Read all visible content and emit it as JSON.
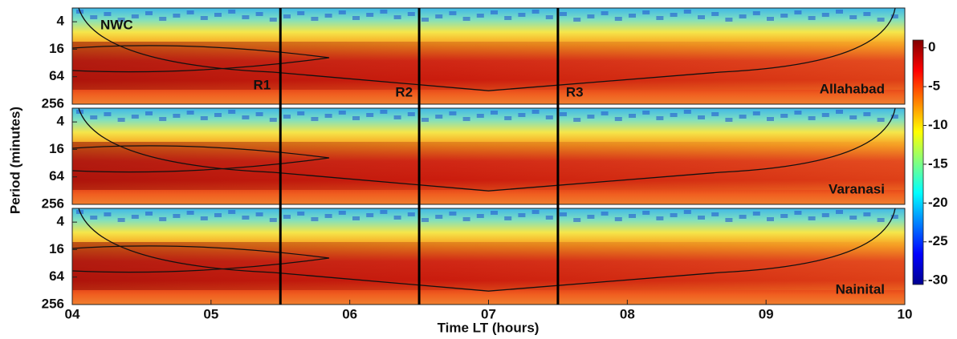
{
  "chart_data": {
    "type": "heatmap",
    "xlabel": "Time LT (hours)",
    "ylabel": "Period (minutes)",
    "xlim": [
      4,
      10
    ],
    "xticks": [
      {
        "value": 4,
        "label": "04"
      },
      {
        "value": 5,
        "label": "05"
      },
      {
        "value": 6,
        "label": "06"
      },
      {
        "value": 7,
        "label": "07"
      },
      {
        "value": 8,
        "label": "08"
      },
      {
        "value": 9,
        "label": "09"
      },
      {
        "value": 10,
        "label": "10"
      }
    ],
    "ylim": [
      256,
      2
    ],
    "yticks": [
      4,
      16,
      64,
      256
    ],
    "log_y": true,
    "panels": [
      "Allahabad",
      "Varanasi",
      "Nainital"
    ],
    "vertical_lines": [
      5.5,
      6.5,
      7.5
    ],
    "annotations": [
      "NWC",
      "R1",
      "R2",
      "R3"
    ],
    "colorbar": {
      "lim": [
        -30.5,
        1
      ],
      "ticks": [
        0,
        -5,
        -10,
        -15,
        -20,
        -25,
        -30
      ],
      "colormap": "jet"
    }
  }
}
